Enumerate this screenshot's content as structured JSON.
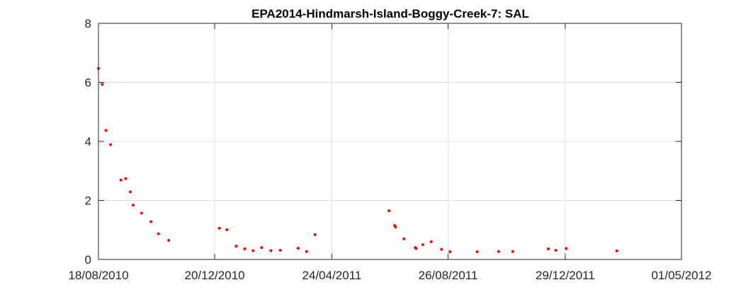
{
  "chart_data": {
    "type": "scatter",
    "title": "EPA2014-Hindmarsh-Island-Boggy-Creek-7: SAL",
    "xlabel": "",
    "ylabel": "",
    "x_type": "date",
    "x_ticks": [
      "18/08/2010",
      "20/12/2010",
      "24/04/2011",
      "26/08/2011",
      "29/12/2011",
      "01/05/2012"
    ],
    "y_ticks": [
      "0",
      "2",
      "4",
      "6",
      "8"
    ],
    "xlim": [
      "2010-08-18",
      "2012-05-01"
    ],
    "ylim": [
      0,
      8
    ],
    "grid": true,
    "marker_color": "#ff0000",
    "series": [
      {
        "points": [
          {
            "x": "2010-08-18",
            "y": 6.47
          },
          {
            "x": "2010-08-22",
            "y": 5.93
          },
          {
            "x": "2010-08-26",
            "y": 4.37
          },
          {
            "x": "2010-08-31",
            "y": 3.89
          },
          {
            "x": "2010-09-11",
            "y": 2.69
          },
          {
            "x": "2010-09-16",
            "y": 2.74
          },
          {
            "x": "2010-09-21",
            "y": 2.29
          },
          {
            "x": "2010-09-24",
            "y": 1.84
          },
          {
            "x": "2010-10-03",
            "y": 1.57
          },
          {
            "x": "2010-10-13",
            "y": 1.28
          },
          {
            "x": "2010-10-21",
            "y": 0.87
          },
          {
            "x": "2010-11-01",
            "y": 0.65
          },
          {
            "x": "2010-12-25",
            "y": 1.06
          },
          {
            "x": "2011-01-02",
            "y": 1.01
          },
          {
            "x": "2011-01-12",
            "y": 0.45
          },
          {
            "x": "2011-01-21",
            "y": 0.36
          },
          {
            "x": "2011-01-30",
            "y": 0.3
          },
          {
            "x": "2011-02-08",
            "y": 0.4
          },
          {
            "x": "2011-02-18",
            "y": 0.3
          },
          {
            "x": "2011-02-28",
            "y": 0.31
          },
          {
            "x": "2011-03-19",
            "y": 0.38
          },
          {
            "x": "2011-03-28",
            "y": 0.27
          },
          {
            "x": "2011-04-06",
            "y": 0.84
          },
          {
            "x": "2011-06-24",
            "y": 1.65
          },
          {
            "x": "2011-06-30",
            "y": 1.15
          },
          {
            "x": "2011-07-01",
            "y": 1.1
          },
          {
            "x": "2011-07-10",
            "y": 0.7
          },
          {
            "x": "2011-07-22",
            "y": 0.4
          },
          {
            "x": "2011-07-23",
            "y": 0.37
          },
          {
            "x": "2011-07-30",
            "y": 0.5
          },
          {
            "x": "2011-08-08",
            "y": 0.6
          },
          {
            "x": "2011-08-19",
            "y": 0.34
          },
          {
            "x": "2011-08-28",
            "y": 0.26
          },
          {
            "x": "2011-09-26",
            "y": 0.26
          },
          {
            "x": "2011-10-19",
            "y": 0.27
          },
          {
            "x": "2011-11-03",
            "y": 0.27
          },
          {
            "x": "2011-12-11",
            "y": 0.36
          },
          {
            "x": "2011-12-19",
            "y": 0.31
          },
          {
            "x": "2011-12-30",
            "y": 0.37
          },
          {
            "x": "2012-02-22",
            "y": 0.29
          }
        ]
      }
    ]
  }
}
